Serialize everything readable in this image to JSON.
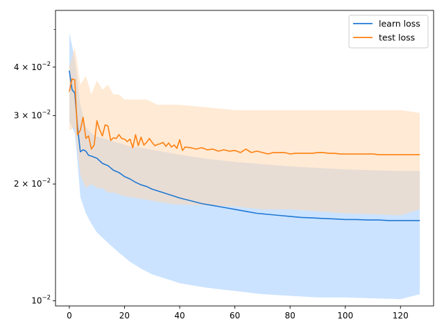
{
  "chart_data": {
    "type": "line",
    "title": "",
    "xlabel": "",
    "ylabel": "",
    "yscale": "log",
    "xlim": [
      -5,
      132
    ],
    "ylim": [
      0.0097,
      0.056
    ],
    "x_ticks": [
      0,
      20,
      40,
      60,
      80,
      100,
      120
    ],
    "x_tick_labels": [
      "0",
      "20",
      "40",
      "60",
      "80",
      "100",
      "120"
    ],
    "y_ticks": [
      0.01,
      0.02,
      0.03,
      0.04
    ],
    "y_tick_labels": [
      {
        "base": "10",
        "exp": "−2",
        "coef": ""
      },
      {
        "base": "10",
        "exp": "−2",
        "coef": "2"
      },
      {
        "base": "10",
        "exp": "−2",
        "coef": "3"
      },
      {
        "base": "10",
        "exp": "−2",
        "coef": "4"
      }
    ],
    "y_minor_ticks": [
      0.05
    ],
    "grid": false,
    "legend_position": "top-right",
    "series": [
      {
        "name": "learn loss",
        "color": "#1f77d4",
        "band_color": "#a8d1ff",
        "mean": {
          "x": [
            0,
            1,
            2,
            3,
            4,
            5,
            6,
            7,
            8,
            10,
            12,
            14,
            16,
            18,
            20,
            22,
            24,
            26,
            28,
            30,
            32,
            34,
            36,
            38,
            40,
            44,
            48,
            52,
            56,
            60,
            64,
            68,
            72,
            76,
            80,
            84,
            88,
            92,
            96,
            100,
            104,
            108,
            112,
            116,
            120,
            124,
            127
          ],
          "y": [
            0.0392,
            0.035,
            0.0343,
            0.028,
            0.0242,
            0.0245,
            0.0243,
            0.0237,
            0.0236,
            0.0233,
            0.0226,
            0.0223,
            0.0217,
            0.0214,
            0.0209,
            0.0206,
            0.0202,
            0.0199,
            0.0197,
            0.0194,
            0.0192,
            0.019,
            0.0188,
            0.0186,
            0.0184,
            0.0181,
            0.0178,
            0.0176,
            0.0174,
            0.0172,
            0.017,
            0.0168,
            0.0167,
            0.0166,
            0.0165,
            0.0164,
            0.01635,
            0.0163,
            0.01625,
            0.0162,
            0.0162,
            0.01615,
            0.01615,
            0.0161,
            0.0161,
            0.0161,
            0.0161
          ]
        },
        "band_upper": {
          "x": [
            0,
            2,
            4,
            6,
            8,
            10,
            14,
            18,
            22,
            26,
            30,
            40,
            50,
            60,
            70,
            80,
            90,
            100,
            110,
            120,
            127
          ],
          "y": [
            0.049,
            0.042,
            0.032,
            0.028,
            0.027,
            0.0265,
            0.026,
            0.0255,
            0.025,
            0.0248,
            0.0245,
            0.0238,
            0.0232,
            0.0228,
            0.0225,
            0.0222,
            0.022,
            0.0218,
            0.0217,
            0.0216,
            0.0216
          ]
        },
        "band_lower": {
          "x": [
            0,
            2,
            4,
            6,
            8,
            10,
            14,
            18,
            22,
            26,
            30,
            40,
            50,
            60,
            70,
            80,
            90,
            100,
            110,
            120,
            127
          ],
          "y": [
            0.029,
            0.027,
            0.0185,
            0.0168,
            0.0158,
            0.015,
            0.0141,
            0.0133,
            0.0126,
            0.0121,
            0.0117,
            0.0111,
            0.0108,
            0.0106,
            0.0104,
            0.0103,
            0.0102,
            0.0102,
            0.01015,
            0.0101,
            0.0104
          ]
        }
      },
      {
        "name": "test loss",
        "color": "#ff7f0e",
        "band_color": "#ffd8b3",
        "mean": {
          "x": [
            0,
            1,
            2,
            3,
            4,
            5,
            6,
            7,
            8,
            9,
            10,
            11,
            12,
            13,
            14,
            15,
            16,
            17,
            18,
            19,
            20,
            21,
            22,
            23,
            24,
            25,
            26,
            27,
            28,
            29,
            30,
            31,
            32,
            33,
            34,
            35,
            36,
            37,
            38,
            39,
            40,
            41,
            42,
            44,
            46,
            48,
            50,
            52,
            54,
            56,
            58,
            60,
            62,
            64,
            66,
            68,
            70,
            72,
            74,
            76,
            78,
            80,
            82,
            84,
            86,
            88,
            90,
            92,
            94,
            96,
            98,
            100,
            102,
            104,
            106,
            108,
            110,
            112,
            114,
            116,
            118,
            120,
            122,
            124,
            127
          ],
          "y": [
            0.0346,
            0.0373,
            0.0371,
            0.0268,
            0.0275,
            0.0297,
            0.0262,
            0.0266,
            0.0246,
            0.0252,
            0.0291,
            0.0276,
            0.0266,
            0.0284,
            0.0282,
            0.0259,
            0.0263,
            0.0262,
            0.0268,
            0.0262,
            0.0261,
            0.0257,
            0.0261,
            0.0248,
            0.0268,
            0.0251,
            0.0264,
            0.0252,
            0.0256,
            0.0262,
            0.0256,
            0.0251,
            0.0253,
            0.0254,
            0.0256,
            0.025,
            0.0255,
            0.0249,
            0.0252,
            0.0247,
            0.026,
            0.0244,
            0.0249,
            0.0248,
            0.0246,
            0.0248,
            0.0245,
            0.0246,
            0.0243,
            0.0245,
            0.0243,
            0.0244,
            0.0241,
            0.0246,
            0.0241,
            0.0243,
            0.0241,
            0.0239,
            0.0241,
            0.0241,
            0.0241,
            0.0239,
            0.024,
            0.024,
            0.024,
            0.024,
            0.0241,
            0.0241,
            0.024,
            0.024,
            0.0239,
            0.0239,
            0.0239,
            0.0239,
            0.0239,
            0.0239,
            0.0239,
            0.0238,
            0.0238,
            0.0238,
            0.0238,
            0.0238,
            0.0238,
            0.0238,
            0.0238
          ]
        },
        "band_upper": {
          "x": [
            0,
            2,
            4,
            6,
            8,
            10,
            12,
            14,
            16,
            18,
            20,
            24,
            28,
            32,
            36,
            40,
            50,
            60,
            70,
            80,
            90,
            100,
            110,
            120,
            127
          ],
          "y": [
            0.04,
            0.045,
            0.036,
            0.038,
            0.034,
            0.037,
            0.035,
            0.036,
            0.034,
            0.034,
            0.033,
            0.033,
            0.033,
            0.032,
            0.032,
            0.032,
            0.0315,
            0.031,
            0.031,
            0.031,
            0.031,
            0.031,
            0.031,
            0.031,
            0.0305
          ]
        },
        "band_lower": {
          "x": [
            0,
            2,
            4,
            6,
            8,
            10,
            12,
            14,
            16,
            18,
            20,
            24,
            28,
            32,
            36,
            40,
            50,
            60,
            70,
            80,
            90,
            100,
            110,
            120,
            127
          ],
          "y": [
            0.0275,
            0.028,
            0.021,
            0.0195,
            0.02,
            0.0195,
            0.0195,
            0.019,
            0.019,
            0.0188,
            0.0186,
            0.0184,
            0.0182,
            0.018,
            0.0178,
            0.0177,
            0.0176,
            0.0175,
            0.0172,
            0.0172,
            0.017,
            0.0168,
            0.0167,
            0.0166,
            0.0172
          ]
        }
      }
    ]
  }
}
